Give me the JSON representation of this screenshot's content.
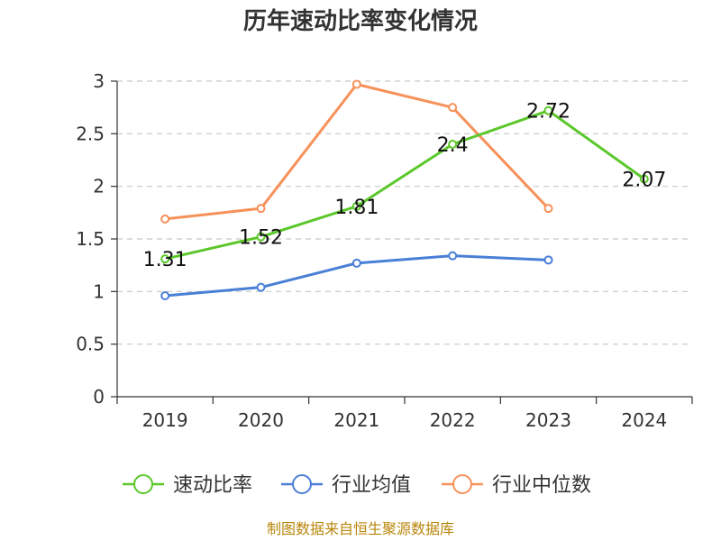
{
  "chart_data": {
    "type": "line",
    "title": "历年速动比率变化情况",
    "categories": [
      "2019",
      "2020",
      "2021",
      "2022",
      "2023",
      "2024"
    ],
    "ylim": [
      0,
      3
    ],
    "yticks": [
      "0",
      "0.5",
      "1",
      "1.5",
      "2",
      "2.5",
      "3"
    ],
    "grid": true,
    "legend_position": "bottom",
    "series": [
      {
        "name": "速动比率",
        "color": "#5bc72a",
        "values": [
          1.31,
          1.52,
          1.81,
          2.4,
          2.72,
          2.07
        ],
        "labels": [
          "1.31",
          "1.52",
          "1.81",
          "2.4",
          "2.72",
          "2.07"
        ],
        "show_labels": true
      },
      {
        "name": "行业均值",
        "color": "#4a7fd6",
        "values": [
          0.96,
          1.04,
          1.27,
          1.34,
          1.3,
          null
        ],
        "show_labels": false
      },
      {
        "name": "行业中位数",
        "color": "#f7915a",
        "values": [
          1.69,
          1.79,
          2.97,
          2.75,
          1.79,
          null
        ],
        "show_labels": false
      }
    ],
    "source": "制图数据来自恒生聚源数据库"
  }
}
